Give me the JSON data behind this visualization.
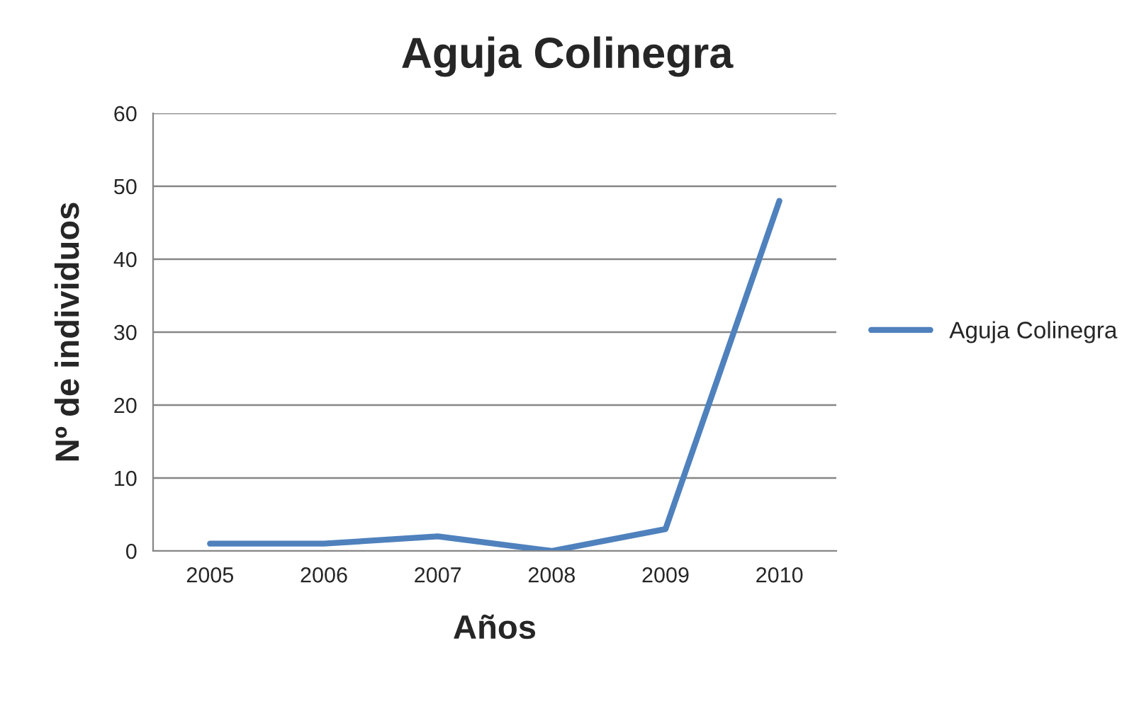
{
  "chart_data": {
    "type": "line",
    "title": "Aguja Colinegra",
    "xlabel": "Años",
    "ylabel": "Nº de individuos",
    "categories": [
      "2005",
      "2006",
      "2007",
      "2008",
      "2009",
      "2010"
    ],
    "series": [
      {
        "name": "Aguja Colinegra",
        "color": "#4f81bd",
        "values": [
          1,
          1,
          2,
          0,
          3,
          48
        ]
      }
    ],
    "ylim": [
      0,
      60
    ],
    "yticks": [
      0,
      10,
      20,
      30,
      40,
      50,
      60
    ],
    "grid": "y",
    "legend": "right",
    "marker": "none",
    "line_style": "solid"
  }
}
